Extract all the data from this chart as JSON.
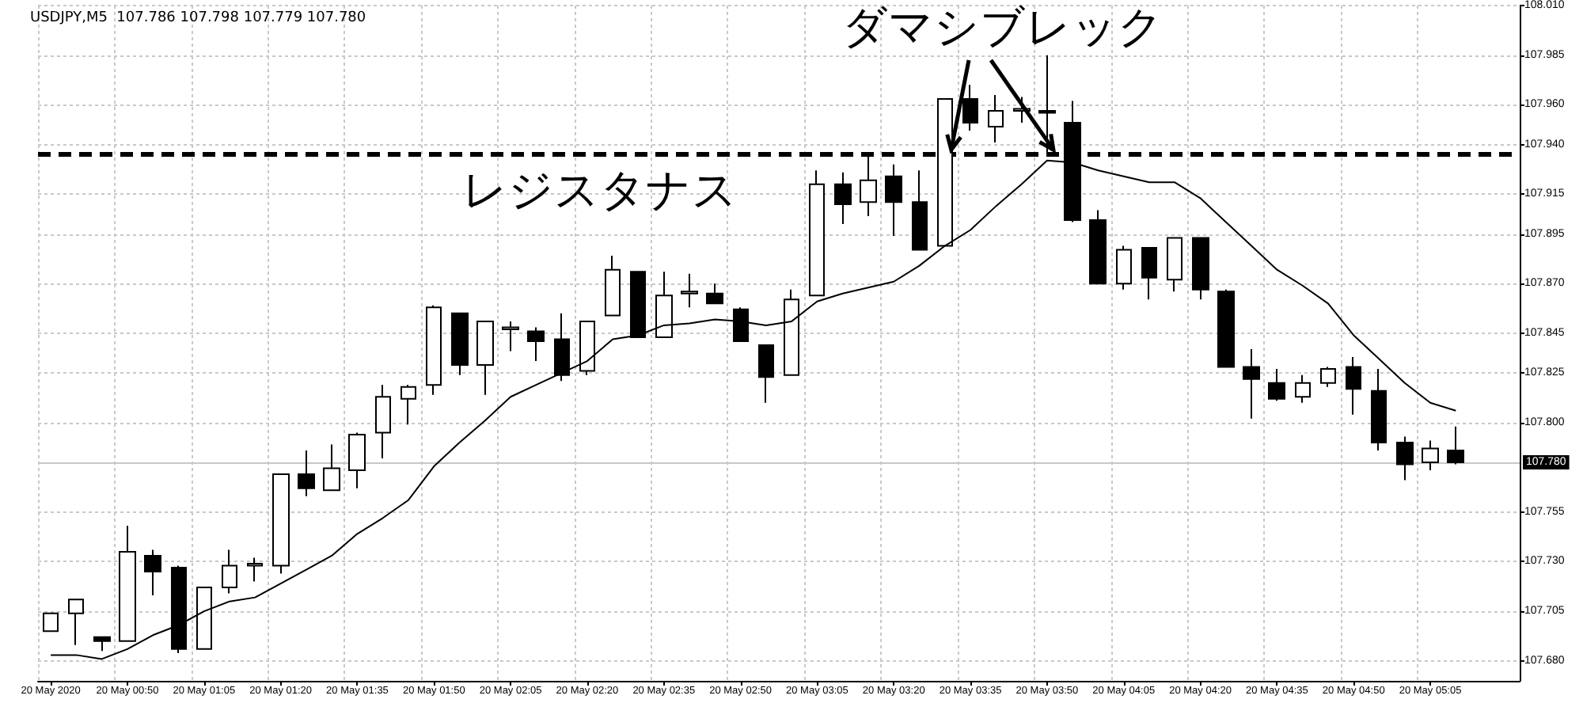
{
  "chart_data": {
    "type": "candlestick",
    "title": "USDJPY,M5  107.786 107.798 107.779 107.780",
    "annotations": [
      "レジスタナス",
      {
        "text": "ダマシブレック",
        "y": 107.935
      }
    ],
    "categories": [
      "20 May 2020",
      null,
      null,
      "20 May 00:50",
      null,
      null,
      "20 May 01:05",
      null,
      null,
      "20 May 01:20",
      null,
      null,
      "20 May 01:35",
      null,
      null,
      "20 May 01:50",
      null,
      null,
      "20 May 02:05",
      null,
      null,
      "20 May 02:20",
      null,
      null,
      "20 May 02:35",
      null,
      null,
      "20 May 02:50",
      null,
      null,
      "20 May 03:05",
      null,
      null,
      "20 May 03:20",
      null,
      null,
      "20 May 03:35",
      null,
      null,
      "20 May 03:50",
      null,
      null,
      "20 May 04:05",
      null,
      null,
      "20 May 04:20",
      null,
      null,
      "20 May 04:35",
      null,
      null,
      "20 May 04:50",
      null,
      null,
      "20 May 05:05",
      null,
      null,
      null
    ],
    "ohlc": [
      [
        107.695,
        107.704,
        107.695,
        107.704
      ],
      [
        107.704,
        107.711,
        107.688,
        107.711
      ],
      [
        107.692,
        107.692,
        107.685,
        107.69
      ],
      [
        107.69,
        107.748,
        107.69,
        107.735
      ],
      [
        107.733,
        107.736,
        107.713,
        107.725
      ],
      [
        107.727,
        107.728,
        107.684,
        107.686
      ],
      [
        107.686,
        107.717,
        107.686,
        107.717
      ],
      [
        107.717,
        107.736,
        107.714,
        107.728
      ],
      [
        107.728,
        107.732,
        107.72,
        107.729
      ],
      [
        107.728,
        107.774,
        107.724,
        107.774
      ],
      [
        107.774,
        107.786,
        107.763,
        107.767
      ],
      [
        107.766,
        107.789,
        107.766,
        107.777
      ],
      [
        107.776,
        107.795,
        107.767,
        107.794
      ],
      [
        107.795,
        107.819,
        107.782,
        107.813
      ],
      [
        107.812,
        107.819,
        107.799,
        107.818
      ],
      [
        107.819,
        107.859,
        107.814,
        107.858
      ],
      [
        107.855,
        107.855,
        107.824,
        107.829
      ],
      [
        107.829,
        107.851,
        107.814,
        107.851
      ],
      [
        107.847,
        107.851,
        107.836,
        107.848
      ],
      [
        107.846,
        107.848,
        107.831,
        107.841
      ],
      [
        107.842,
        107.855,
        107.821,
        107.824
      ],
      [
        107.826,
        107.851,
        107.824,
        107.851
      ],
      [
        107.854,
        107.884,
        107.854,
        107.877
      ],
      [
        107.876,
        107.876,
        107.843,
        107.843
      ],
      [
        107.843,
        107.876,
        107.843,
        107.864
      ],
      [
        107.865,
        107.875,
        107.858,
        107.866
      ],
      [
        107.865,
        107.87,
        107.86,
        107.86
      ],
      [
        107.857,
        107.858,
        107.841,
        107.841
      ],
      [
        107.839,
        107.839,
        107.81,
        107.823
      ],
      [
        107.824,
        107.867,
        107.824,
        107.862
      ],
      [
        107.864,
        107.927,
        107.864,
        107.92
      ],
      [
        107.92,
        107.926,
        107.9,
        107.91
      ],
      [
        107.911,
        107.935,
        107.904,
        107.922
      ],
      [
        107.924,
        107.93,
        107.894,
        107.911
      ],
      [
        107.911,
        107.927,
        107.887,
        107.887
      ],
      [
        107.889,
        107.963,
        107.889,
        107.963
      ],
      [
        107.963,
        107.97,
        107.947,
        107.951
      ],
      [
        107.949,
        107.965,
        107.941,
        107.957
      ],
      [
        107.957,
        107.964,
        107.951,
        107.958
      ],
      [
        107.957,
        107.985,
        107.935,
        107.956
      ],
      [
        107.951,
        107.962,
        107.901,
        107.902
      ],
      [
        107.902,
        107.907,
        107.87,
        107.87
      ],
      [
        107.87,
        107.889,
        107.867,
        107.887
      ],
      [
        107.888,
        107.888,
        107.862,
        107.873
      ],
      [
        107.872,
        107.893,
        107.866,
        107.893
      ],
      [
        107.893,
        107.893,
        107.862,
        107.867
      ],
      [
        107.866,
        107.867,
        107.828,
        107.828
      ],
      [
        107.828,
        107.837,
        107.802,
        107.822
      ],
      [
        107.82,
        107.827,
        107.811,
        107.812
      ],
      [
        107.813,
        107.824,
        107.81,
        107.82
      ],
      [
        107.82,
        107.828,
        107.818,
        107.827
      ],
      [
        107.828,
        107.833,
        107.804,
        107.817
      ],
      [
        107.816,
        107.827,
        107.786,
        107.79
      ],
      [
        107.79,
        107.793,
        107.771,
        107.779
      ],
      [
        107.78,
        107.791,
        107.776,
        107.787
      ],
      [
        107.786,
        107.798,
        107.779,
        107.78
      ],
      null,
      null
    ],
    "series": [
      {
        "type": "line",
        "color": "#000000",
        "values": [
          107.683,
          107.683,
          107.681,
          107.686,
          107.693,
          107.698,
          107.705,
          107.71,
          107.712,
          107.719,
          107.726,
          107.733,
          107.744,
          107.752,
          107.761,
          107.778,
          107.79,
          107.801,
          107.813,
          107.819,
          107.825,
          107.831,
          107.842,
          107.844,
          107.849,
          107.85,
          107.852,
          107.851,
          107.849,
          107.851,
          107.861,
          107.865,
          107.868,
          107.871,
          107.879,
          107.889,
          107.897,
          107.909,
          107.92,
          107.932,
          107.931,
          107.927,
          107.924,
          107.921,
          107.921,
          107.913,
          107.901,
          107.889,
          107.877,
          107.869,
          107.86,
          107.844,
          107.832,
          107.82,
          107.81,
          107.806,
          null,
          null
        ]
      }
    ],
    "ylim": [
      107.67,
      108.01
    ],
    "yticks": [
      {
        "value": 108.01,
        "label": "108.010"
      },
      {
        "value": 107.985,
        "label": "107.985"
      },
      {
        "value": 107.96,
        "label": "107.960"
      },
      {
        "value": 107.94,
        "label": "107.940"
      },
      {
        "value": 107.915,
        "label": "107.915"
      },
      {
        "value": 107.895,
        "label": "107.895"
      },
      {
        "value": 107.87,
        "label": "107.870"
      },
      {
        "value": 107.845,
        "label": "107.845"
      },
      {
        "value": 107.825,
        "label": "107.825"
      },
      {
        "value": 107.8,
        "label": "107.800"
      },
      {
        "value": 107.755,
        "label": "107.755"
      },
      {
        "value": 107.73,
        "label": "107.730"
      },
      {
        "value": 107.705,
        "label": "107.705"
      },
      {
        "value": 107.68,
        "label": "107.680"
      }
    ],
    "ref_lines": [
      {
        "axis": "y",
        "value": 107.935,
        "label": null,
        "color": "#000000",
        "line_style": "dashed"
      },
      {
        "axis": "y",
        "value": 107.78,
        "label": "107.780",
        "color": "#c8c8c8",
        "line_style": "solid"
      }
    ],
    "grid": true,
    "marker": "none"
  }
}
